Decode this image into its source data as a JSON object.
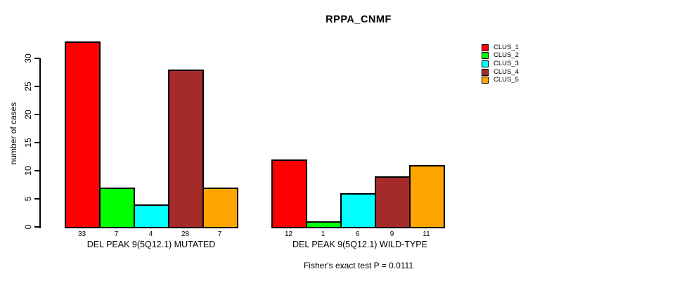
{
  "chart_data": {
    "type": "bar",
    "title": "RPPA_CNMF",
    "ylabel": "number of cases",
    "xlabel": "",
    "ylim": [
      0,
      33
    ],
    "yticks": [
      0,
      5,
      10,
      15,
      20,
      25,
      30
    ],
    "grid": false,
    "legend_position": "right-inside",
    "legend": [
      {
        "label": "CLUS_1",
        "color": "#FF0000"
      },
      {
        "label": "CLUS_2",
        "color": "#00FF00"
      },
      {
        "label": "CLUS_3",
        "color": "#00FFFF"
      },
      {
        "label": "CLUS_4",
        "color": "#A52A2A"
      },
      {
        "label": "CLUS_5",
        "color": "#FFA500"
      }
    ],
    "groups": [
      {
        "label": "DEL PEAK 9(5Q12.1) MUTATED",
        "values": [
          33,
          7,
          4,
          28,
          7
        ]
      },
      {
        "label": "DEL PEAK 9(5Q12.1) WILD-TYPE",
        "values": [
          12,
          1,
          6,
          9,
          11
        ]
      }
    ],
    "bar_value_labels_shown": true,
    "footnote": "Fisher's exact test P = 0.0111"
  }
}
